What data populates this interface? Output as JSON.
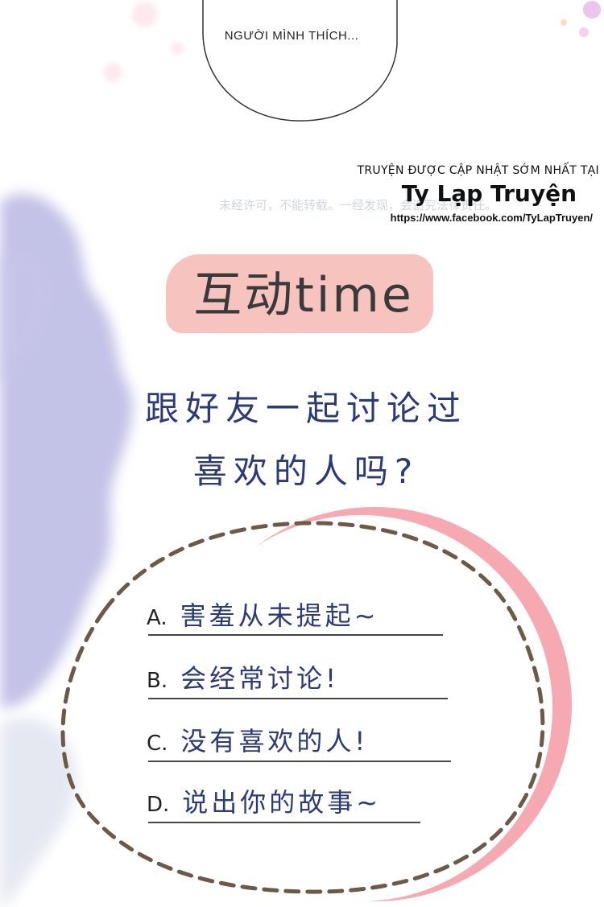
{
  "bubble": {
    "text": "NGƯỜI MÌNH THÍCH..."
  },
  "credits": {
    "line1": "TRUYỆN ĐƯỢC CẬP NHẬT SỚM NHẤT TẠI",
    "brand": "Ty Lạp Truyện",
    "url": "https://www.facebook.com/TyLapTruyen/"
  },
  "watermark": {
    "text": "未经许可，不能转载。一经发现，会追究法律责任。"
  },
  "title": {
    "text": "互动time"
  },
  "question": {
    "line1": "跟好友一起讨论过",
    "line2": "喜欢的人吗?"
  },
  "options": [
    {
      "letter": "A.",
      "text": "害羞从未提起~"
    },
    {
      "letter": "B.",
      "text": "会经常讨论!"
    },
    {
      "letter": "C.",
      "text": "没有喜欢的人!"
    },
    {
      "letter": "D.",
      "text": "说出你的故事~"
    }
  ],
  "colors": {
    "lavender": "#b8b7e0",
    "pink": "#f6a5ac",
    "banner": "#f6c3bf",
    "text_blue": "#2b3a7a",
    "dash": "#6b5a48"
  }
}
